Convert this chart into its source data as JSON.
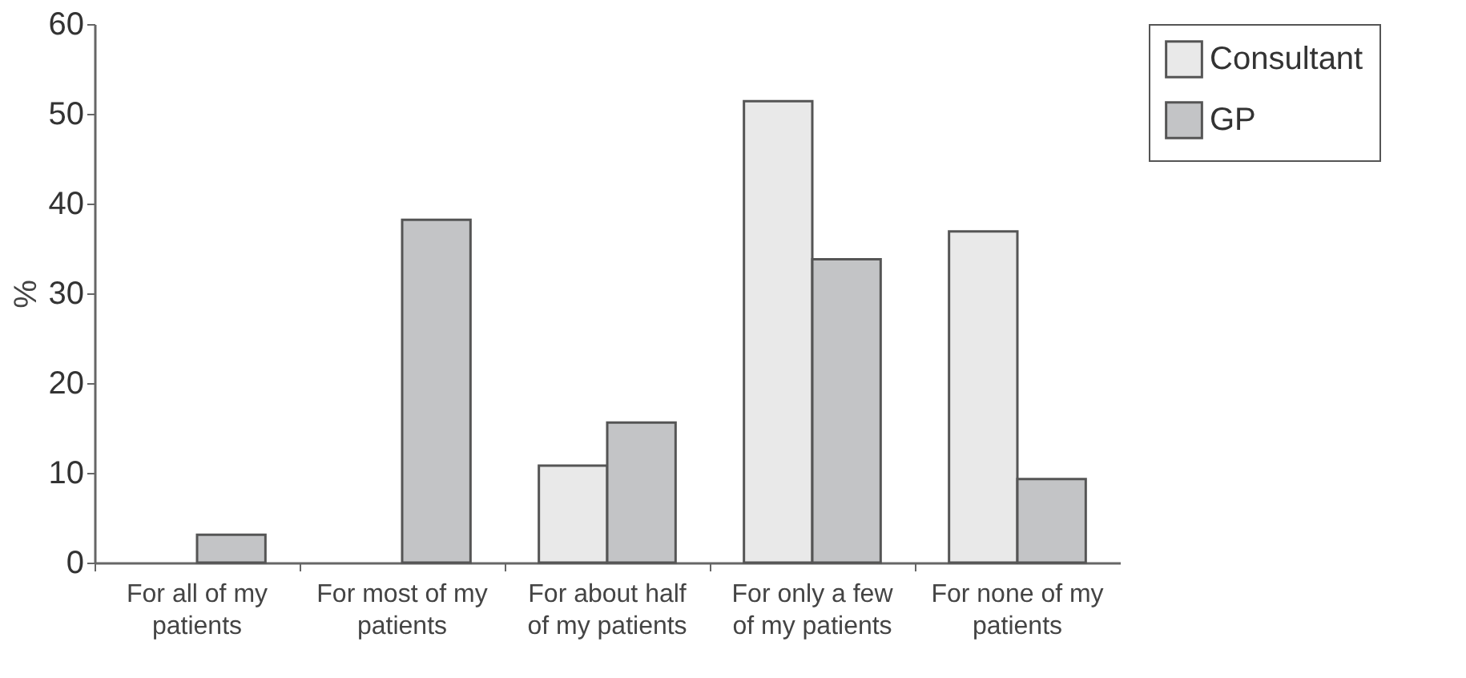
{
  "chart_data": {
    "type": "bar",
    "ylabel": "%",
    "categories": [
      "For all of my patients",
      "For most of my patients",
      "For about half of my patients",
      "For only a few of my patients",
      "For none of my patients"
    ],
    "series": [
      {
        "name": "Consultant",
        "color": "#e9e9e9",
        "values": [
          null,
          null,
          10.8,
          51.4,
          36.9
        ]
      },
      {
        "name": "GP",
        "color": "#c3c4c6",
        "values": [
          3.1,
          38.2,
          15.6,
          33.8,
          9.3
        ]
      }
    ],
    "ylim": [
      0,
      60
    ],
    "yticks": [
      0,
      10,
      20,
      30,
      40,
      50,
      60
    ],
    "grid": false,
    "legend": "right"
  }
}
